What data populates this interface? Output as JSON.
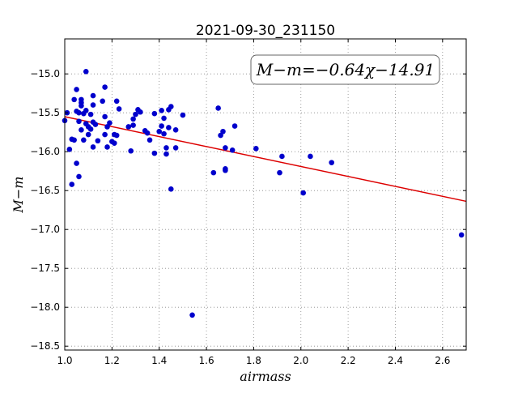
{
  "chart_data": {
    "type": "scatter",
    "title": "2021-09-30_231150",
    "xlabel": "airmass",
    "ylabel": "M−m",
    "annotation": "M−m=−0.64χ−14.91",
    "xlim": [
      1.0,
      2.7
    ],
    "ylim": [
      -18.55,
      -14.55
    ],
    "x_ticks": [
      1.0,
      1.2,
      1.4,
      1.6,
      1.8,
      2.0,
      2.2,
      2.4,
      2.6
    ],
    "x_tick_labels": [
      "1.0",
      "1.2",
      "1.4",
      "1.6",
      "1.8",
      "2.0",
      "2.2",
      "2.4",
      "2.6"
    ],
    "y_ticks": [
      -15.0,
      -15.5,
      -16.0,
      -16.5,
      -17.0,
      -17.5,
      -18.0,
      -18.5
    ],
    "y_tick_labels": [
      "−15.0",
      "−15.5",
      "−16.0",
      "−16.5",
      "−17.0",
      "−17.5",
      "−18.0",
      "−18.5"
    ],
    "grid": true,
    "fit_line": {
      "slope": -0.64,
      "intercept": -14.91
    },
    "colors": {
      "points": "#0000cc",
      "fit_line": "#dd0000",
      "grid": "#888888"
    },
    "points": [
      {
        "x": 1.0,
        "y": -15.6
      },
      {
        "x": 1.01,
        "y": -15.5
      },
      {
        "x": 1.02,
        "y": -15.97
      },
      {
        "x": 1.03,
        "y": -16.42
      },
      {
        "x": 1.03,
        "y": -15.84
      },
      {
        "x": 1.04,
        "y": -15.85
      },
      {
        "x": 1.04,
        "y": -15.33
      },
      {
        "x": 1.05,
        "y": -15.2
      },
      {
        "x": 1.05,
        "y": -15.48
      },
      {
        "x": 1.05,
        "y": -16.15
      },
      {
        "x": 1.06,
        "y": -15.5
      },
      {
        "x": 1.06,
        "y": -15.61
      },
      {
        "x": 1.06,
        "y": -16.32
      },
      {
        "x": 1.07,
        "y": -15.72
      },
      {
        "x": 1.07,
        "y": -15.41
      },
      {
        "x": 1.07,
        "y": -15.33
      },
      {
        "x": 1.07,
        "y": -15.37
      },
      {
        "x": 1.08,
        "y": -15.51
      },
      {
        "x": 1.08,
        "y": -15.85
      },
      {
        "x": 1.09,
        "y": -15.47
      },
      {
        "x": 1.09,
        "y": -14.97
      },
      {
        "x": 1.09,
        "y": -15.64
      },
      {
        "x": 1.1,
        "y": -15.68
      },
      {
        "x": 1.1,
        "y": -15.78
      },
      {
        "x": 1.11,
        "y": -15.52
      },
      {
        "x": 1.11,
        "y": -15.71
      },
      {
        "x": 1.12,
        "y": -15.28
      },
      {
        "x": 1.12,
        "y": -15.4
      },
      {
        "x": 1.12,
        "y": -15.62
      },
      {
        "x": 1.12,
        "y": -15.94
      },
      {
        "x": 1.13,
        "y": -15.65
      },
      {
        "x": 1.14,
        "y": -15.86
      },
      {
        "x": 1.16,
        "y": -15.35
      },
      {
        "x": 1.17,
        "y": -15.17
      },
      {
        "x": 1.17,
        "y": -15.55
      },
      {
        "x": 1.17,
        "y": -15.78
      },
      {
        "x": 1.18,
        "y": -15.68
      },
      {
        "x": 1.18,
        "y": -15.94
      },
      {
        "x": 1.19,
        "y": -15.63
      },
      {
        "x": 1.2,
        "y": -15.87
      },
      {
        "x": 1.21,
        "y": -15.78
      },
      {
        "x": 1.21,
        "y": -15.89
      },
      {
        "x": 1.22,
        "y": -15.79
      },
      {
        "x": 1.22,
        "y": -15.35
      },
      {
        "x": 1.23,
        "y": -15.45
      },
      {
        "x": 1.27,
        "y": -15.68
      },
      {
        "x": 1.28,
        "y": -15.99
      },
      {
        "x": 1.29,
        "y": -15.66
      },
      {
        "x": 1.29,
        "y": -15.58
      },
      {
        "x": 1.3,
        "y": -15.52
      },
      {
        "x": 1.31,
        "y": -15.46
      },
      {
        "x": 1.32,
        "y": -15.49
      },
      {
        "x": 1.34,
        "y": -15.73
      },
      {
        "x": 1.35,
        "y": -15.76
      },
      {
        "x": 1.36,
        "y": -15.85
      },
      {
        "x": 1.38,
        "y": -15.51
      },
      {
        "x": 1.38,
        "y": -16.02
      },
      {
        "x": 1.4,
        "y": -15.74
      },
      {
        "x": 1.41,
        "y": -15.47
      },
      {
        "x": 1.41,
        "y": -15.67
      },
      {
        "x": 1.42,
        "y": -15.57
      },
      {
        "x": 1.42,
        "y": -15.77
      },
      {
        "x": 1.43,
        "y": -15.95
      },
      {
        "x": 1.43,
        "y": -16.03
      },
      {
        "x": 1.44,
        "y": -15.69
      },
      {
        "x": 1.44,
        "y": -15.46
      },
      {
        "x": 1.45,
        "y": -16.48
      },
      {
        "x": 1.45,
        "y": -15.42
      },
      {
        "x": 1.47,
        "y": -15.72
      },
      {
        "x": 1.47,
        "y": -15.95
      },
      {
        "x": 1.5,
        "y": -15.53
      },
      {
        "x": 1.54,
        "y": -18.1
      },
      {
        "x": 1.63,
        "y": -16.27
      },
      {
        "x": 1.65,
        "y": -15.44
      },
      {
        "x": 1.66,
        "y": -15.79
      },
      {
        "x": 1.67,
        "y": -15.74
      },
      {
        "x": 1.68,
        "y": -16.22
      },
      {
        "x": 1.68,
        "y": -16.24
      },
      {
        "x": 1.68,
        "y": -15.95
      },
      {
        "x": 1.71,
        "y": -15.98
      },
      {
        "x": 1.72,
        "y": -15.67
      },
      {
        "x": 1.81,
        "y": -15.96
      },
      {
        "x": 1.91,
        "y": -16.27
      },
      {
        "x": 1.92,
        "y": -16.06
      },
      {
        "x": 2.01,
        "y": -16.53
      },
      {
        "x": 2.04,
        "y": -16.06
      },
      {
        "x": 2.13,
        "y": -16.14
      },
      {
        "x": 2.68,
        "y": -17.07
      }
    ]
  }
}
